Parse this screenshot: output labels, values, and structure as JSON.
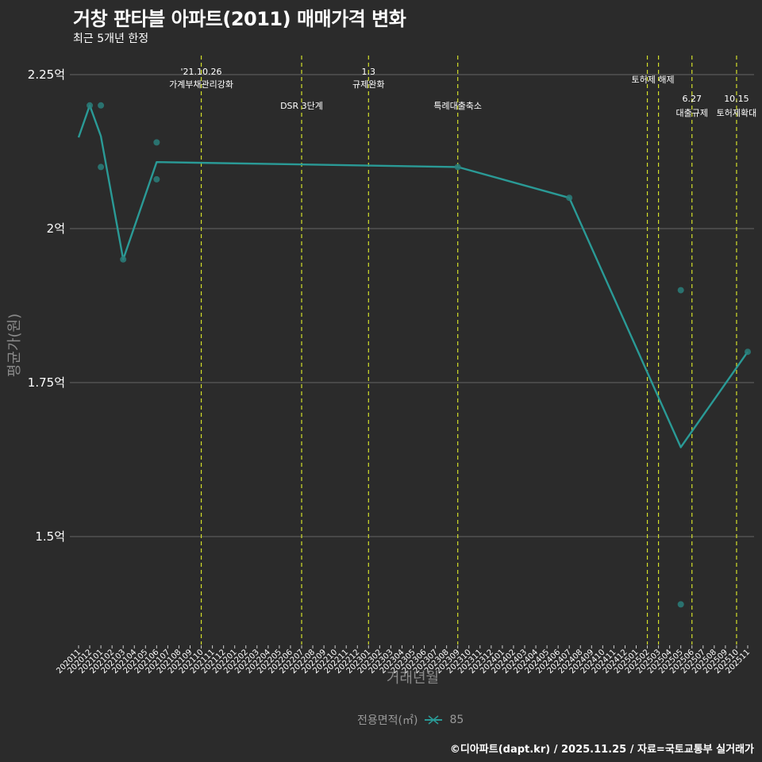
{
  "header": {
    "title": "거창 판타블 아파트(2011) 매매가격 변화",
    "subtitle": "최근 5개년 한정"
  },
  "legend": {
    "title": "전용면적(㎡)",
    "items": [
      {
        "label": "85",
        "color": "#2a9a96"
      }
    ]
  },
  "caption": "©디아파트(dapt.kr) / 2025.11.25 / 자료=국토교통부 실거래가",
  "colors": {
    "background": "#2b2b2b",
    "grid": "#5a5a5a",
    "line": "#2a9a96",
    "point": "#2a7f7b",
    "event_line": "#d4e02a"
  },
  "chart_data": {
    "type": "line",
    "title": "거창 판타블 아파트(2011) 매매가격 변화",
    "subtitle": "최근 5개년 한정",
    "xlabel": "거래년월",
    "ylabel": "평균가(원)",
    "ylim": [
      1.35,
      2.27
    ],
    "yticks": [
      {
        "value": 1.5,
        "label": "1.5억"
      },
      {
        "value": 1.75,
        "label": "1.75억"
      },
      {
        "value": 2.0,
        "label": "2억"
      },
      {
        "value": 2.25,
        "label": "2.25억"
      }
    ],
    "x_categories": [
      "202011",
      "202012",
      "202101",
      "202102",
      "202103",
      "202104",
      "202105",
      "202106",
      "202107",
      "202108",
      "202109",
      "202110",
      "202111",
      "202112",
      "202201",
      "202202",
      "202203",
      "202204",
      "202205",
      "202206",
      "202207",
      "202208",
      "202209",
      "202210",
      "202211",
      "202212",
      "202301",
      "202302",
      "202303",
      "202304",
      "202305",
      "202306",
      "202307",
      "202308",
      "202309",
      "202310",
      "202311",
      "202312",
      "202401",
      "202402",
      "202403",
      "202404",
      "202405",
      "202406",
      "202407",
      "202408",
      "202409",
      "202410",
      "202411",
      "202412",
      "202501",
      "202502",
      "202503",
      "202504",
      "202505",
      "202506",
      "202507",
      "202508",
      "202509",
      "202510",
      "202511"
    ],
    "series": [
      {
        "name": "85",
        "line": [
          {
            "x": "202011",
            "y": 2.148
          },
          {
            "x": "202012",
            "y": 2.2
          },
          {
            "x": "202101",
            "y": 2.15
          },
          {
            "x": "202103",
            "y": 1.95
          },
          {
            "x": "202106",
            "y": 2.108
          },
          {
            "x": "202309",
            "y": 2.1
          },
          {
            "x": "202407",
            "y": 2.05
          },
          {
            "x": "202505",
            "y": 1.645
          },
          {
            "x": "202511",
            "y": 1.8
          }
        ],
        "points": [
          {
            "x": "202012",
            "y": 2.2
          },
          {
            "x": "202101",
            "y": 2.2
          },
          {
            "x": "202101",
            "y": 2.1
          },
          {
            "x": "202103",
            "y": 1.95
          },
          {
            "x": "202106",
            "y": 2.14
          },
          {
            "x": "202106",
            "y": 2.08
          },
          {
            "x": "202309",
            "y": 2.1
          },
          {
            "x": "202407",
            "y": 2.05
          },
          {
            "x": "202505",
            "y": 1.9
          },
          {
            "x": "202505",
            "y": 1.39
          },
          {
            "x": "202511",
            "y": 1.8
          }
        ]
      }
    ],
    "events": [
      {
        "x": "202110",
        "lines": [
          "'21.10.26",
          "가계부채관리강화"
        ],
        "row": 0
      },
      {
        "x": "202207",
        "lines": [
          "DSR 3단계"
        ],
        "row": 2
      },
      {
        "x": "202301",
        "lines": [
          "1.3",
          "규제완화"
        ],
        "row": 0
      },
      {
        "x": "202309",
        "lines": [
          "특례대출축소"
        ],
        "row": 2
      },
      {
        "x": "202502",
        "lines": [],
        "row": 0
      },
      {
        "x": "202503",
        "lines": [
          "토허제 해제"
        ],
        "row": 1,
        "label_x_offset": -7
      },
      {
        "x": "202506",
        "lines": [
          "6.27",
          "대출규제"
        ],
        "row": 3
      },
      {
        "x": "202510",
        "lines": [
          "10.15",
          "토허제확대"
        ],
        "row": 3
      }
    ],
    "grid": true,
    "legend_position": "bottom"
  }
}
